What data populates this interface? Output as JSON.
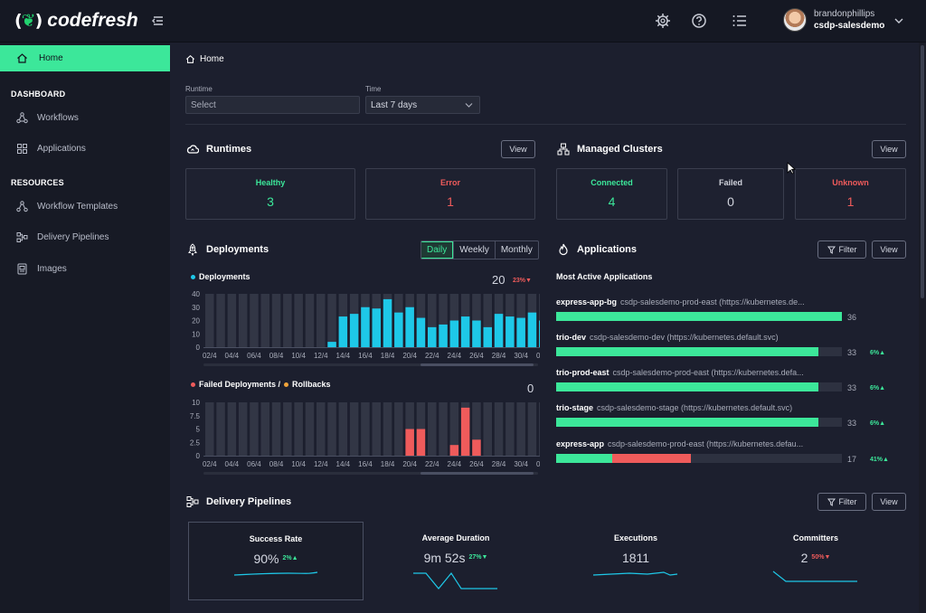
{
  "brand": {
    "name": "codefresh",
    "accent": "#3ce79a"
  },
  "topbar": {
    "icons": [
      "gear-icon",
      "help-icon",
      "list-icon"
    ],
    "user": {
      "name": "brandonphillips",
      "org": "csdp-salesdemo"
    }
  },
  "sidebar": {
    "home": "Home",
    "sections": [
      {
        "title": "DASHBOARD",
        "items": [
          {
            "label": "Workflows",
            "icon": "workflows-icon"
          },
          {
            "label": "Applications",
            "icon": "applications-icon"
          }
        ]
      },
      {
        "title": "RESOURCES",
        "items": [
          {
            "label": "Workflow Templates",
            "icon": "templates-icon"
          },
          {
            "label": "Delivery Pipelines",
            "icon": "pipelines-icon"
          },
          {
            "label": "Images",
            "icon": "images-icon"
          }
        ]
      }
    ]
  },
  "breadcrumb": "Home",
  "filters": {
    "runtime": {
      "label": "Runtime",
      "placeholder": "Select"
    },
    "time": {
      "label": "Time",
      "value": "Last 7 days"
    }
  },
  "runtimes": {
    "title": "Runtimes",
    "view": "View",
    "cards": [
      {
        "label": "Healthy",
        "value": "3"
      },
      {
        "label": "Error",
        "value": "1"
      }
    ]
  },
  "clusters": {
    "title": "Managed Clusters",
    "view": "View",
    "cards": [
      {
        "label": "Connected",
        "value": "4"
      },
      {
        "label": "Failed",
        "value": "0"
      },
      {
        "label": "Unknown",
        "value": "1"
      }
    ]
  },
  "deployments": {
    "title": "Deployments",
    "ranges": [
      "Daily",
      "Weekly",
      "Monthly"
    ],
    "active_range": "Daily",
    "legend": "Deployments",
    "total": "20",
    "delta": "23%",
    "failed_legend": "Failed Deployments /",
    "rollback_legend": "Rollbacks",
    "failed_total": "0"
  },
  "applications": {
    "title": "Applications",
    "filter": "Filter",
    "view": "View",
    "subtitle": "Most Active Applications",
    "items": [
      {
        "name": "express-app-bg",
        "desc": "csdp-salesdemo-prod-east (https://kubernetes.de...",
        "count": "36",
        "delta": "",
        "green": 1.0,
        "red": 0
      },
      {
        "name": "trio-dev",
        "desc": "csdp-salesdemo-dev (https://kubernetes.default.svc)",
        "count": "33",
        "delta": "6%",
        "green": 0.917,
        "red": 0
      },
      {
        "name": "trio-prod-east",
        "desc": "csdp-salesdemo-prod-east (https://kubernetes.defa...",
        "count": "33",
        "delta": "6%",
        "green": 0.917,
        "red": 0
      },
      {
        "name": "trio-stage",
        "desc": "csdp-salesdemo-stage (https://kubernetes.default.svc)",
        "count": "33",
        "delta": "6%",
        "green": 0.917,
        "red": 0
      },
      {
        "name": "express-app",
        "desc": "csdp-salesdemo-prod-east (https://kubernetes.defau...",
        "count": "17",
        "delta": "41%",
        "green": 0.196,
        "red": 0.275
      }
    ]
  },
  "pipelines": {
    "title": "Delivery Pipelines",
    "filter": "Filter",
    "view": "View",
    "metrics": [
      {
        "title": "Success Rate",
        "value": "90%",
        "delta": "2%",
        "trend": "up"
      },
      {
        "title": "Average Duration",
        "value": "9m 52s",
        "delta": "27%",
        "trend": "down"
      },
      {
        "title": "Executions",
        "value": "1811",
        "delta": "",
        "trend": ""
      },
      {
        "title": "Committers",
        "value": "2",
        "delta": "50%",
        "trend": "down"
      }
    ]
  },
  "chart_data": [
    {
      "type": "bar",
      "title": "Deployments",
      "x": [
        "02/4",
        "03/4",
        "04/4",
        "05/4",
        "06/4",
        "07/4",
        "08/4",
        "09/4",
        "10/4",
        "11/4",
        "12/4",
        "13/4",
        "14/4",
        "15/4",
        "16/4",
        "17/4",
        "18/4",
        "19/4",
        "20/4",
        "21/4",
        "22/4",
        "23/4",
        "24/4",
        "25/4",
        "26/4",
        "27/4",
        "28/4",
        "29/4",
        "30/4",
        "01/5",
        "02/5"
      ],
      "xticks": [
        "02/4",
        "04/4",
        "06/4",
        "08/4",
        "10/4",
        "12/4",
        "14/4",
        "16/4",
        "18/4",
        "20/4",
        "22/4",
        "24/4",
        "26/4",
        "28/4",
        "30/4",
        "02/5"
      ],
      "series": [
        {
          "name": "Deployments",
          "color": "#1ec8e8",
          "values": [
            0,
            0,
            0,
            0,
            0,
            0,
            0,
            0,
            0,
            0,
            0,
            4,
            23,
            25,
            30,
            29,
            36,
            26,
            30,
            22,
            15,
            17,
            20,
            23,
            20,
            15,
            25,
            23,
            22,
            26,
            20
          ]
        }
      ],
      "ylim": [
        0,
        40
      ],
      "yticks": [
        "40",
        "30",
        "20",
        "10",
        "0"
      ]
    },
    {
      "type": "bar",
      "title": "Failed Deployments / Rollbacks",
      "x": [
        "02/4",
        "03/4",
        "04/4",
        "05/4",
        "06/4",
        "07/4",
        "08/4",
        "09/4",
        "10/4",
        "11/4",
        "12/4",
        "13/4",
        "14/4",
        "15/4",
        "16/4",
        "17/4",
        "18/4",
        "19/4",
        "20/4",
        "21/4",
        "22/4",
        "23/4",
        "24/4",
        "25/4",
        "26/4",
        "27/4",
        "28/4",
        "29/4",
        "30/4",
        "01/5",
        "02/5"
      ],
      "xticks": [
        "02/4",
        "04/4",
        "06/4",
        "08/4",
        "10/4",
        "12/4",
        "14/4",
        "16/4",
        "18/4",
        "20/4",
        "22/4",
        "24/4",
        "26/4",
        "28/4",
        "30/4",
        "02/5"
      ],
      "series": [
        {
          "name": "Failed Deployments",
          "color": "#ef5b5b",
          "values": [
            0,
            0,
            0,
            0,
            0,
            0,
            0,
            0,
            0,
            0,
            0,
            0,
            0,
            0,
            0,
            0,
            0,
            0,
            5,
            5,
            0,
            0,
            2,
            9,
            3,
            0,
            0,
            0,
            0,
            0,
            0
          ]
        },
        {
          "name": "Rollbacks",
          "color": "#f0a33a",
          "values": [
            0,
            0,
            0,
            0,
            0,
            0,
            0,
            0,
            0,
            0,
            0,
            0,
            0,
            0,
            0,
            0,
            0,
            0,
            0,
            0,
            0,
            0,
            0,
            0,
            0,
            0,
            0,
            0,
            0,
            0,
            0
          ]
        }
      ],
      "ylim": [
        0,
        10
      ],
      "yticks": [
        "10",
        "7.5",
        "5",
        "2.5",
        "0"
      ]
    }
  ]
}
